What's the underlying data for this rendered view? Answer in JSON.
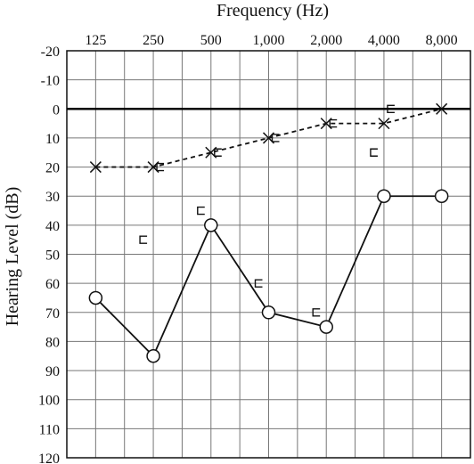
{
  "chart_data": {
    "type": "line",
    "title": "",
    "xlabel": "Frequency (Hz)",
    "ylabel": "Hearing Level (dB)",
    "x_axis_position": "top",
    "y_axis_inverted": true,
    "grid": true,
    "categories": [
      "125",
      "250",
      "500",
      "1,000",
      "2,000",
      "4,000",
      "8,000"
    ],
    "x_tick_labels": [
      "125",
      "250",
      "500",
      "1,000",
      "2,000",
      "4,000",
      "8,000"
    ],
    "y_tick_labels": [
      "-20",
      "-10",
      "0",
      "10",
      "20",
      "30",
      "40",
      "50",
      "60",
      "70",
      "80",
      "90",
      "100",
      "110",
      "120"
    ],
    "ylim": [
      -20,
      120
    ],
    "y_ticks": [
      -20,
      -10,
      0,
      10,
      20,
      30,
      40,
      50,
      60,
      70,
      80,
      90,
      100,
      110,
      120
    ],
    "reference_line_y": 0,
    "series": [
      {
        "marker": "circle",
        "line_style": "solid",
        "values": [
          65,
          85,
          40,
          70,
          75,
          30,
          30
        ]
      },
      {
        "marker": "x",
        "line_style": "dashed",
        "values": [
          20,
          20,
          15,
          10,
          5,
          5,
          0
        ]
      },
      {
        "marker": "bracket",
        "line_style": "none",
        "points": [
          {
            "x_index": 1,
            "y": 20,
            "side": "right"
          },
          {
            "x_index": 2,
            "y": 15,
            "side": "right"
          },
          {
            "x_index": 3,
            "y": 10,
            "side": "right"
          },
          {
            "x_index": 4,
            "y": 5,
            "side": "right"
          },
          {
            "x_index": 5,
            "y": 0,
            "side": "right"
          },
          {
            "x_index": 1,
            "y": 45,
            "side": "left"
          },
          {
            "x_index": 2,
            "y": 35,
            "side": "left"
          },
          {
            "x_index": 3,
            "y": 60,
            "side": "left"
          },
          {
            "x_index": 4,
            "y": 70,
            "side": "left"
          },
          {
            "x_index": 5,
            "y": 15,
            "side": "left"
          }
        ]
      }
    ]
  }
}
